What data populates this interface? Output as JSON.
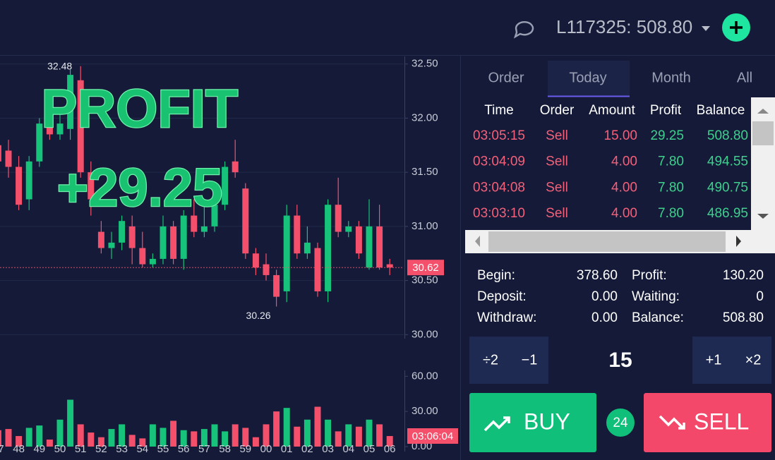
{
  "header": {
    "account": "L117325: 508.80"
  },
  "overlay": {
    "title": "PROFIT",
    "amount": "+29.25"
  },
  "chart_data": {
    "type": "candlestick",
    "categories": [
      "47",
      null,
      "48",
      null,
      "49",
      null,
      "50",
      null,
      "51",
      null,
      "52",
      null,
      "53",
      null,
      "54",
      null,
      "55",
      null,
      "56",
      null,
      "57",
      null,
      "58",
      null,
      "59",
      null,
      "00",
      null,
      "01",
      null,
      "02",
      null,
      "03",
      null,
      "04",
      null,
      "05",
      null,
      "06"
    ],
    "open": [
      31.75,
      31.7,
      31.55,
      31.25,
      31.6,
      31.95,
      31.85,
      31.9,
      32.35,
      31.5,
      30.95,
      30.8,
      30.85,
      31.0,
      30.8,
      30.65,
      30.7,
      31.0,
      30.7,
      31.1,
      30.95,
      31.0,
      31.2,
      31.6,
      31.35,
      30.75,
      30.65,
      30.55,
      30.4,
      31.1,
      30.75,
      30.8,
      30.4,
      31.2,
      30.95,
      31.0,
      30.62,
      31.0,
      30.65
    ],
    "close": [
      31.6,
      31.55,
      31.2,
      31.6,
      31.95,
      31.85,
      31.95,
      32.4,
      31.5,
      31.25,
      30.8,
      30.85,
      31.05,
      30.8,
      30.65,
      30.7,
      31.0,
      30.7,
      31.1,
      30.95,
      31.0,
      31.2,
      31.55,
      31.5,
      30.75,
      30.62,
      30.55,
      30.35,
      31.1,
      30.75,
      30.85,
      30.4,
      31.2,
      30.95,
      31.0,
      30.75,
      31.0,
      30.62,
      30.62
    ],
    "high": [
      31.85,
      31.8,
      31.65,
      31.65,
      32.0,
      32.1,
      32.05,
      32.45,
      32.48,
      31.6,
      31.05,
      30.95,
      31.1,
      31.1,
      30.95,
      30.75,
      31.1,
      31.05,
      31.15,
      31.25,
      31.2,
      31.25,
      31.6,
      31.8,
      31.4,
      30.8,
      30.75,
      30.6,
      31.2,
      31.2,
      31.0,
      30.85,
      31.25,
      31.45,
      31.05,
      31.05,
      31.25,
      31.2,
      30.7
    ],
    "low": [
      31.5,
      31.45,
      31.15,
      31.15,
      31.55,
      31.8,
      31.8,
      31.8,
      31.45,
      31.1,
      30.75,
      30.7,
      30.78,
      30.65,
      30.62,
      30.62,
      30.65,
      30.65,
      30.6,
      30.9,
      30.9,
      30.95,
      31.15,
      31.45,
      30.7,
      30.55,
      30.5,
      30.26,
      30.3,
      30.7,
      30.7,
      30.35,
      30.3,
      30.9,
      30.9,
      30.7,
      30.6,
      30.6,
      30.55
    ],
    "volume": [
      14,
      15,
      9,
      16,
      18,
      6,
      23,
      40,
      19,
      12,
      8,
      15,
      19,
      10,
      7,
      19,
      16,
      22,
      14,
      13,
      15,
      19,
      13,
      19,
      16,
      8,
      19,
      30,
      33,
      17,
      23,
      34,
      23,
      13,
      19,
      17,
      23,
      19,
      9
    ],
    "up_color": "#17c27a",
    "down_color": "#f4506b",
    "ylim": [
      29.8,
      32.57
    ],
    "yticks": [
      {
        "value": 30,
        "label": "30.00"
      },
      {
        "value": 30.5,
        "label": "30.50"
      },
      {
        "value": 31,
        "label": "31.00"
      },
      {
        "value": 31.5,
        "label": "31.50"
      },
      {
        "value": 32,
        "label": "32.00"
      },
      {
        "value": 32.5,
        "label": "32.50"
      }
    ],
    "y2lim": [
      0,
      65
    ],
    "y2ticks": [
      {
        "value": 0,
        "label": "0.00"
      },
      {
        "value": 30,
        "label": "30.00"
      },
      {
        "value": 60,
        "label": "60.00"
      }
    ],
    "grid": true,
    "max_label": 32.48,
    "min_label": 30.26,
    "last_price": 30.62,
    "last_time": "03:06:04"
  },
  "tabs": [
    "Order",
    "Today",
    "Month",
    "All"
  ],
  "active_tab": 1,
  "trades": {
    "columns": [
      "Time",
      "Order",
      "Amount",
      "Profit",
      "Balance"
    ],
    "rows": [
      [
        "03:05:15",
        "Sell",
        "15.00",
        "29.25",
        "508.80"
      ],
      [
        "03:04:09",
        "Sell",
        "4.00",
        "7.80",
        "494.55"
      ],
      [
        "03:04:08",
        "Sell",
        "4.00",
        "7.80",
        "490.75"
      ],
      [
        "03:03:10",
        "Sell",
        "4.00",
        "7.80",
        "486.95"
      ]
    ]
  },
  "summary": [
    {
      "label": "Begin:",
      "value": "378.60"
    },
    {
      "label": "Profit:",
      "value": "130.20"
    },
    {
      "label": "Deposit:",
      "value": "0.00"
    },
    {
      "label": "Waiting:",
      "value": "0"
    },
    {
      "label": "Withdraw:",
      "value": "0.00"
    },
    {
      "label": "Balance:",
      "value": "508.80"
    }
  ],
  "controls": {
    "halve": "÷2",
    "minus": "−1",
    "amount": "15",
    "plus": "+1",
    "double": "×2",
    "buy": "BUY",
    "count": "24",
    "sell": "SELL"
  }
}
